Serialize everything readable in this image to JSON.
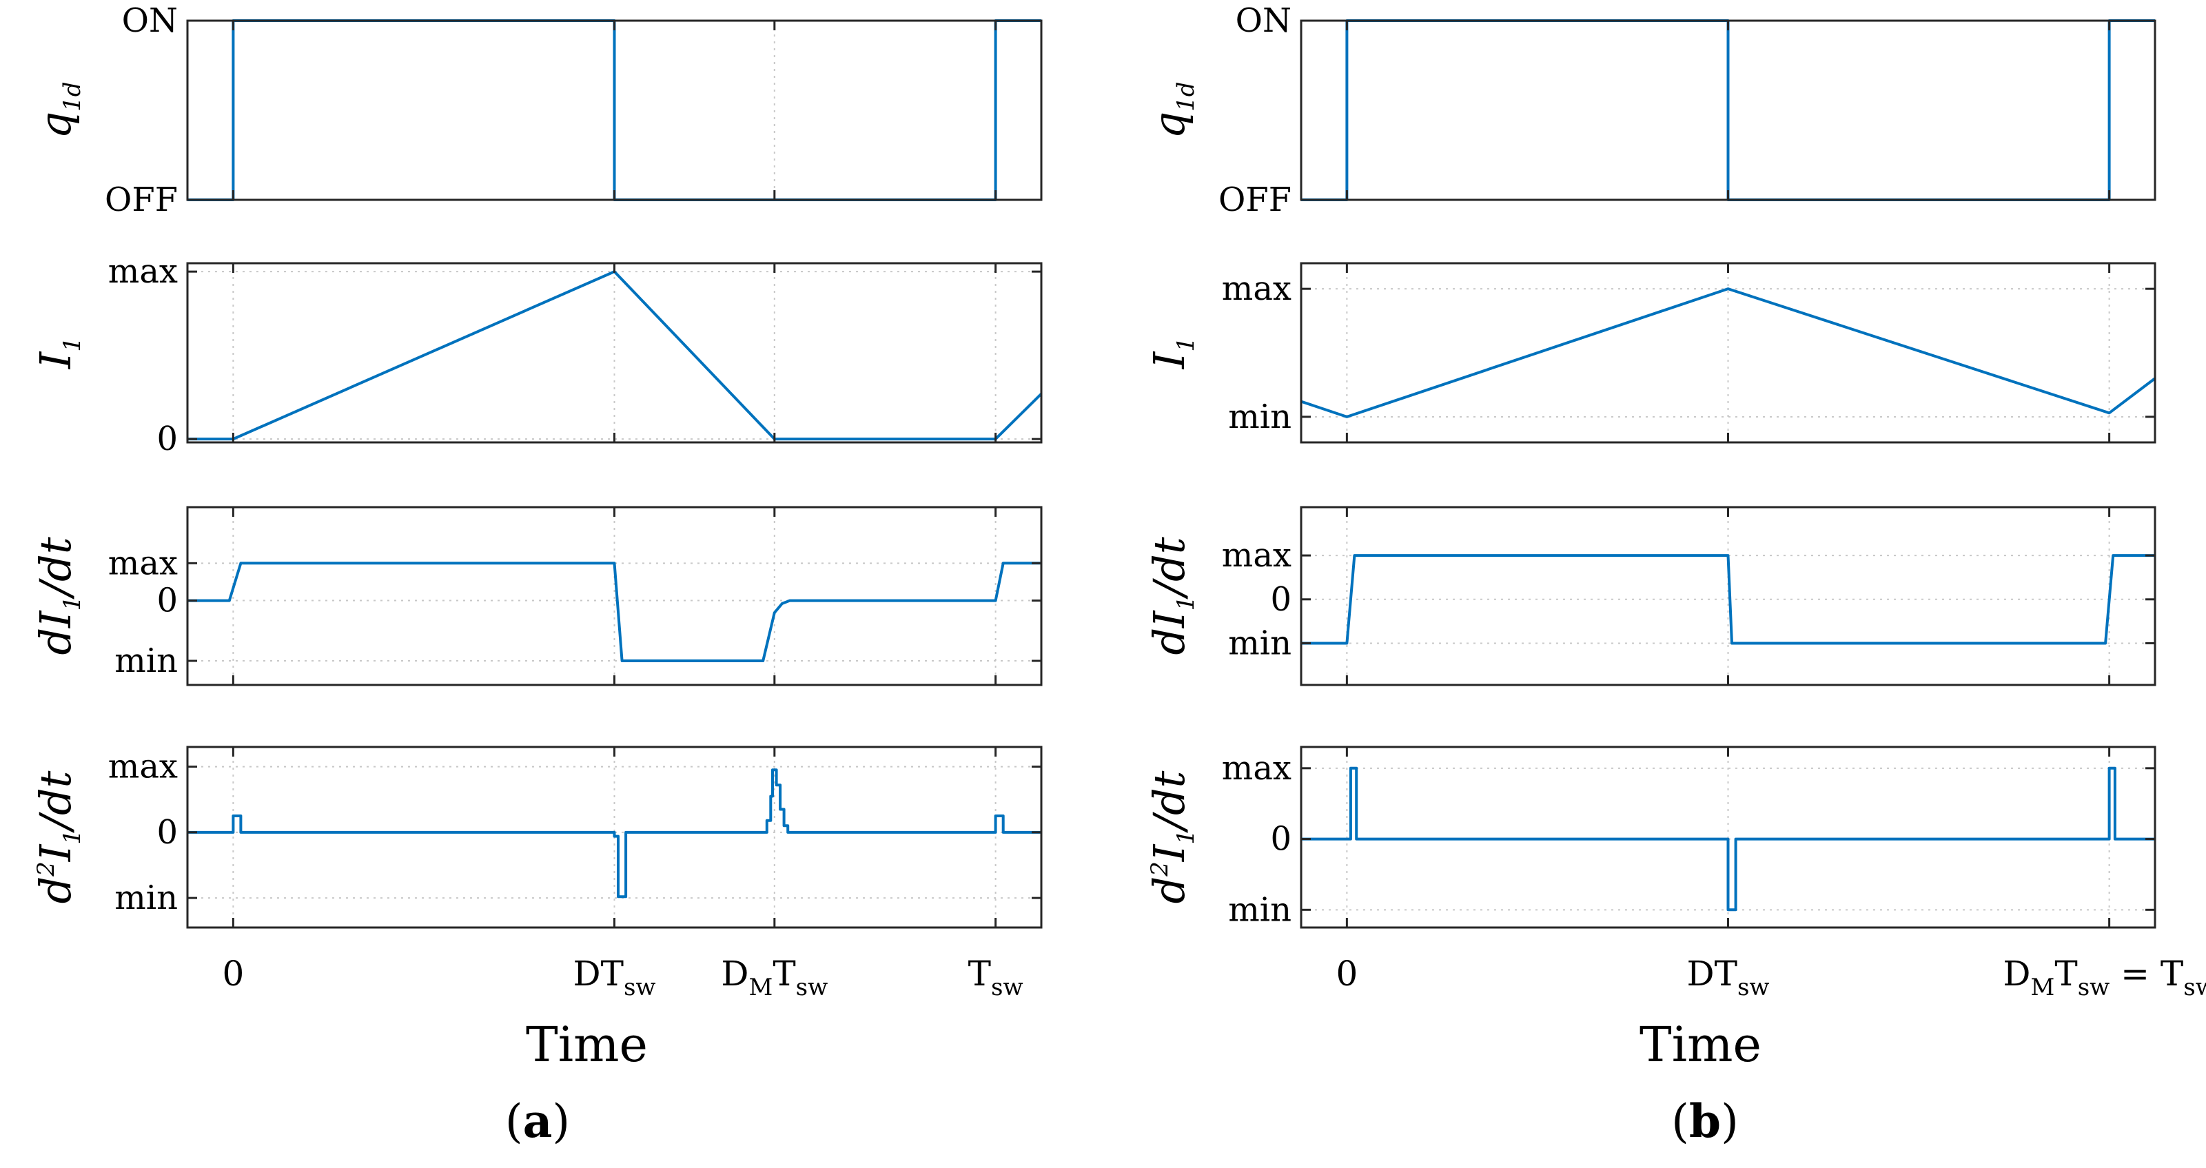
{
  "chart_data": [
    {
      "id": "a",
      "caption": "a",
      "type": "line",
      "xlabel": "Time",
      "x_range": [
        -0.12,
        2.12
      ],
      "x_ticks": [
        {
          "x": 0,
          "label": "0",
          "label_sub": "",
          "prefix": "",
          "prefix_sub": ""
        },
        {
          "x": 1.0,
          "label": "DT",
          "label_sub": "sw",
          "prefix": "",
          "prefix_sub": ""
        },
        {
          "x": 1.42,
          "label": "T",
          "label_sub": "sw",
          "prefix": "D",
          "prefix_sub": "M"
        },
        {
          "x": 2.0,
          "label": "T",
          "label_sub": "sw",
          "prefix": "",
          "prefix_sub": ""
        }
      ],
      "grid_x": [
        0,
        1.0,
        1.42,
        2.0
      ],
      "line_color": "#0072BD",
      "panels": [
        {
          "key": "q1d",
          "ylabel_main": "q",
          "ylabel_sub": "1d",
          "ylabel_prefix": "",
          "ylabel_suffix": "",
          "y_range": [
            0,
            1
          ],
          "y_ticks": [
            {
              "value": 1,
              "label": "ON"
            },
            {
              "value": 0,
              "label": "OFF"
            }
          ],
          "points": [
            [
              -0.12,
              0
            ],
            [
              0,
              0
            ],
            [
              0,
              1
            ],
            [
              1.0,
              1
            ],
            [
              1.0,
              0
            ],
            [
              2.0,
              0
            ],
            [
              2.0,
              1
            ],
            [
              2.12,
              1
            ]
          ]
        },
        {
          "key": "I1",
          "ylabel_main": "I",
          "ylabel_sub": "1",
          "ylabel_prefix": "",
          "ylabel_suffix": "",
          "y_range": [
            -0.02,
            1.05
          ],
          "y_ticks": [
            {
              "value": 1,
              "label": "max"
            },
            {
              "value": 0,
              "label": "0"
            }
          ],
          "points": [
            [
              -0.12,
              0
            ],
            [
              0,
              0
            ],
            [
              1.0,
              1
            ],
            [
              1.42,
              0
            ],
            [
              2.0,
              0
            ],
            [
              2.12,
              0.27
            ]
          ]
        },
        {
          "key": "dI1dt",
          "ylabel_main": "I",
          "ylabel_sub": "1",
          "ylabel_prefix": "d",
          "ylabel_suffix": "/dt",
          "y_range": [
            -1.4,
            1.55
          ],
          "y_ticks": [
            {
              "value": 0.62,
              "label": "max"
            },
            {
              "value": 0,
              "label": "0"
            },
            {
              "value": -1,
              "label": "min"
            }
          ],
          "points": [
            [
              -0.12,
              0
            ],
            [
              -0.01,
              0
            ],
            [
              0.02,
              0.62
            ],
            [
              1.0,
              0.62
            ],
            [
              1.02,
              -1
            ],
            [
              1.39,
              -1
            ],
            [
              1.42,
              -0.2
            ],
            [
              1.44,
              -0.05
            ],
            [
              1.46,
              0
            ],
            [
              2.0,
              0
            ],
            [
              2.02,
              0.62
            ],
            [
              2.12,
              0.62
            ]
          ]
        },
        {
          "key": "d2I1dt2",
          "ylabel_main": "I",
          "ylabel_sub": "1",
          "ylabel_prefix": "d",
          "ylabel_suffix": "/dt",
          "ylabel_sup": "2",
          "y_range": [
            -1.45,
            1.3
          ],
          "y_ticks": [
            {
              "value": 1,
              "label": "max"
            },
            {
              "value": 0,
              "label": "0"
            },
            {
              "value": -1,
              "label": "min"
            }
          ],
          "points": [
            [
              -0.12,
              0
            ],
            [
              0,
              0
            ],
            [
              0,
              0.25
            ],
            [
              0.02,
              0.25
            ],
            [
              0.02,
              0
            ],
            [
              1.0,
              0
            ],
            [
              1.0,
              -0.06
            ],
            [
              1.01,
              -0.06
            ],
            [
              1.01,
              -0.98
            ],
            [
              1.03,
              -0.98
            ],
            [
              1.03,
              0
            ],
            [
              1.4,
              0
            ],
            [
              1.4,
              0.18
            ],
            [
              1.41,
              0.18
            ],
            [
              1.41,
              0.55
            ],
            [
              1.415,
              0.55
            ],
            [
              1.415,
              0.95
            ],
            [
              1.425,
              0.95
            ],
            [
              1.425,
              0.72
            ],
            [
              1.435,
              0.72
            ],
            [
              1.435,
              0.35
            ],
            [
              1.445,
              0.35
            ],
            [
              1.445,
              0.1
            ],
            [
              1.455,
              0.1
            ],
            [
              1.455,
              0
            ],
            [
              2.0,
              0
            ],
            [
              2.0,
              0.25
            ],
            [
              2.02,
              0.25
            ],
            [
              2.02,
              0
            ],
            [
              2.12,
              0
            ]
          ]
        }
      ]
    },
    {
      "id": "b",
      "caption": "b",
      "type": "line",
      "xlabel": "Time",
      "x_range": [
        -0.12,
        2.12
      ],
      "x_ticks": [
        {
          "x": 0,
          "label": "0",
          "label_sub": "",
          "prefix": "",
          "prefix_sub": ""
        },
        {
          "x": 1.0,
          "label": "DT",
          "label_sub": "sw",
          "prefix": "",
          "prefix_sub": ""
        },
        {
          "x": 2.0,
          "label": "T",
          "label_sub": "sw",
          "prefix": "D",
          "prefix_sub": "M",
          "suffix": " = T",
          "suffix_sub": "sw"
        }
      ],
      "grid_x": [
        0,
        1.0,
        2.0
      ],
      "line_color": "#0072BD",
      "panels": [
        {
          "key": "q1d",
          "ylabel_main": "q",
          "ylabel_sub": "1d",
          "ylabel_prefix": "",
          "ylabel_suffix": "",
          "y_range": [
            0,
            1
          ],
          "y_ticks": [
            {
              "value": 1,
              "label": "ON"
            },
            {
              "value": 0,
              "label": "OFF"
            }
          ],
          "points": [
            [
              -0.12,
              0
            ],
            [
              0,
              0
            ],
            [
              0,
              1
            ],
            [
              1.0,
              1
            ],
            [
              1.0,
              0
            ],
            [
              2.0,
              0
            ],
            [
              2.0,
              1
            ],
            [
              2.12,
              1
            ]
          ]
        },
        {
          "key": "I1",
          "ylabel_main": "I",
          "ylabel_sub": "1",
          "ylabel_prefix": "",
          "ylabel_suffix": "",
          "y_range": [
            -0.2,
            1.2
          ],
          "y_ticks": [
            {
              "value": 1,
              "label": "max"
            },
            {
              "value": 0,
              "label": "min"
            }
          ],
          "points": [
            [
              -0.12,
              0.12
            ],
            [
              0,
              0
            ],
            [
              1.0,
              1
            ],
            [
              2.0,
              0.03
            ],
            [
              2.12,
              0.3
            ]
          ]
        },
        {
          "key": "dI1dt",
          "ylabel_main": "I",
          "ylabel_sub": "1",
          "ylabel_prefix": "d",
          "ylabel_suffix": "/dt",
          "y_range": [
            -1.95,
            2.1
          ],
          "y_ticks": [
            {
              "value": 1,
              "label": "max"
            },
            {
              "value": 0,
              "label": "0"
            },
            {
              "value": -1,
              "label": "min"
            }
          ],
          "points": [
            [
              -0.12,
              -1
            ],
            [
              0,
              -1
            ],
            [
              0.02,
              1
            ],
            [
              1.0,
              1
            ],
            [
              1.01,
              -1
            ],
            [
              1.99,
              -1
            ],
            [
              2.01,
              1
            ],
            [
              2.12,
              1
            ]
          ]
        },
        {
          "key": "d2I1dt2",
          "ylabel_main": "I",
          "ylabel_sub": "1",
          "ylabel_prefix": "d",
          "ylabel_suffix": "/dt",
          "ylabel_sup": "2",
          "y_range": [
            -1.25,
            1.3
          ],
          "y_ticks": [
            {
              "value": 1,
              "label": "max"
            },
            {
              "value": 0,
              "label": "0"
            },
            {
              "value": -1,
              "label": "min"
            }
          ],
          "points": [
            [
              -0.12,
              0
            ],
            [
              0.01,
              0
            ],
            [
              0.01,
              1
            ],
            [
              0.025,
              1
            ],
            [
              0.025,
              0
            ],
            [
              1.0,
              0
            ],
            [
              1.0,
              -1
            ],
            [
              1.02,
              -1
            ],
            [
              1.02,
              0
            ],
            [
              2.0,
              0
            ],
            [
              2.0,
              1
            ],
            [
              2.015,
              1
            ],
            [
              2.015,
              0
            ],
            [
              2.12,
              0
            ]
          ]
        }
      ]
    }
  ]
}
